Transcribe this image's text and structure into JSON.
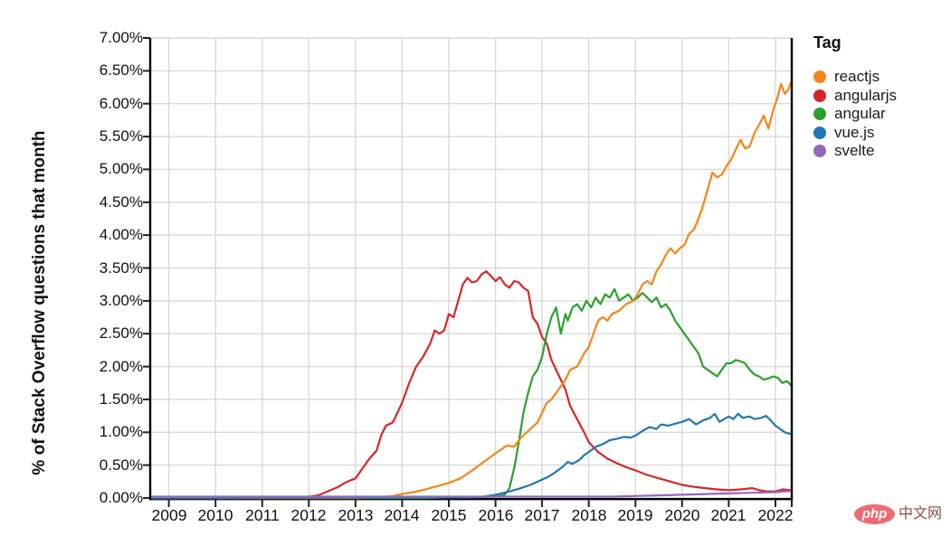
{
  "watermark": {
    "badge": "php",
    "text": "中文网",
    "badge_color": "#ee6a71",
    "text_color": "#8d4b45"
  },
  "chart_data": {
    "type": "line",
    "title": "",
    "xlabel": "",
    "ylabel": "% of Stack Overflow questions that month",
    "legend_title": "Tag",
    "legend_position": "right",
    "grid": true,
    "grid_color": "#d9d9d9",
    "axis_color": "#000000",
    "x_domain": [
      2008.6,
      2022.35
    ],
    "y_domain": [
      0,
      7
    ],
    "y_ticks": [
      {
        "value": 7.0,
        "label": "7.00%"
      },
      {
        "value": 6.5,
        "label": "6.50%"
      },
      {
        "value": 6.0,
        "label": "6.00%"
      },
      {
        "value": 5.5,
        "label": "5.50%"
      },
      {
        "value": 5.0,
        "label": "5.00%"
      },
      {
        "value": 4.5,
        "label": "4.50%"
      },
      {
        "value": 4.0,
        "label": "4.00%"
      },
      {
        "value": 3.5,
        "label": "3.50%"
      },
      {
        "value": 3.0,
        "label": "3.00%"
      },
      {
        "value": 2.5,
        "label": "2.50%"
      },
      {
        "value": 2.0,
        "label": "2.00%"
      },
      {
        "value": 1.5,
        "label": "1.50%"
      },
      {
        "value": 1.0,
        "label": "1.00%"
      },
      {
        "value": 0.5,
        "label": "0.50%"
      },
      {
        "value": 0.0,
        "label": "0.00%"
      }
    ],
    "x_ticks": [
      {
        "value": 2009,
        "label": "2009"
      },
      {
        "value": 2010,
        "label": "2010"
      },
      {
        "value": 2011,
        "label": "2011"
      },
      {
        "value": 2012,
        "label": "2012"
      },
      {
        "value": 2013,
        "label": "2013"
      },
      {
        "value": 2014,
        "label": "2014"
      },
      {
        "value": 2015,
        "label": "2015"
      },
      {
        "value": 2016,
        "label": "2016"
      },
      {
        "value": 2017,
        "label": "2017"
      },
      {
        "value": 2018,
        "label": "2018"
      },
      {
        "value": 2019,
        "label": "2019"
      },
      {
        "value": 2020,
        "label": "2020"
      },
      {
        "value": 2021,
        "label": "2021"
      },
      {
        "value": 2022,
        "label": "2022"
      }
    ],
    "draw_order": [
      "angularjs",
      "angular",
      "reactjs",
      "vue.js",
      "svelte"
    ],
    "series": [
      {
        "name": "reactjs",
        "color": "#f58518",
        "points": [
          [
            2008.6,
            0
          ],
          [
            2013,
            0
          ],
          [
            2013.4,
            0.01
          ],
          [
            2013.8,
            0.03
          ],
          [
            2014,
            0.06
          ],
          [
            2014.25,
            0.09
          ],
          [
            2014.5,
            0.13
          ],
          [
            2014.75,
            0.18
          ],
          [
            2015,
            0.23
          ],
          [
            2015.25,
            0.3
          ],
          [
            2015.5,
            0.42
          ],
          [
            2015.75,
            0.55
          ],
          [
            2016,
            0.68
          ],
          [
            2016.25,
            0.8
          ],
          [
            2016.4,
            0.78
          ],
          [
            2016.55,
            0.92
          ],
          [
            2016.75,
            1.05
          ],
          [
            2016.9,
            1.15
          ],
          [
            2017,
            1.3
          ],
          [
            2017.1,
            1.45
          ],
          [
            2017.2,
            1.5
          ],
          [
            2017.35,
            1.65
          ],
          [
            2017.5,
            1.8
          ],
          [
            2017.6,
            1.95
          ],
          [
            2017.75,
            2.0
          ],
          [
            2017.9,
            2.2
          ],
          [
            2018,
            2.3
          ],
          [
            2018.1,
            2.5
          ],
          [
            2018.2,
            2.7
          ],
          [
            2018.3,
            2.75
          ],
          [
            2018.4,
            2.7
          ],
          [
            2018.5,
            2.8
          ],
          [
            2018.65,
            2.85
          ],
          [
            2018.8,
            2.95
          ],
          [
            2018.95,
            3.0
          ],
          [
            2019.05,
            3.1
          ],
          [
            2019.15,
            3.25
          ],
          [
            2019.25,
            3.3
          ],
          [
            2019.35,
            3.25
          ],
          [
            2019.45,
            3.45
          ],
          [
            2019.55,
            3.55
          ],
          [
            2019.65,
            3.7
          ],
          [
            2019.75,
            3.8
          ],
          [
            2019.85,
            3.72
          ],
          [
            2019.95,
            3.8
          ],
          [
            2020.05,
            3.85
          ],
          [
            2020.15,
            4.02
          ],
          [
            2020.25,
            4.08
          ],
          [
            2020.35,
            4.25
          ],
          [
            2020.45,
            4.45
          ],
          [
            2020.55,
            4.7
          ],
          [
            2020.65,
            4.95
          ],
          [
            2020.75,
            4.88
          ],
          [
            2020.85,
            4.92
          ],
          [
            2020.95,
            5.05
          ],
          [
            2021.05,
            5.15
          ],
          [
            2021.15,
            5.3
          ],
          [
            2021.25,
            5.45
          ],
          [
            2021.35,
            5.32
          ],
          [
            2021.45,
            5.35
          ],
          [
            2021.55,
            5.55
          ],
          [
            2021.65,
            5.68
          ],
          [
            2021.75,
            5.82
          ],
          [
            2021.85,
            5.62
          ],
          [
            2021.95,
            5.9
          ],
          [
            2022.05,
            6.1
          ],
          [
            2022.12,
            6.3
          ],
          [
            2022.2,
            6.15
          ],
          [
            2022.28,
            6.22
          ],
          [
            2022.35,
            6.35
          ]
        ]
      },
      {
        "name": "angularjs",
        "color": "#d62728",
        "points": [
          [
            2008.6,
            0
          ],
          [
            2011.5,
            0
          ],
          [
            2011.8,
            0.01
          ],
          [
            2012,
            0.02
          ],
          [
            2012.2,
            0.04
          ],
          [
            2012.4,
            0.1
          ],
          [
            2012.6,
            0.16
          ],
          [
            2012.8,
            0.24
          ],
          [
            2013,
            0.3
          ],
          [
            2013.15,
            0.45
          ],
          [
            2013.3,
            0.6
          ],
          [
            2013.45,
            0.72
          ],
          [
            2013.55,
            0.95
          ],
          [
            2013.65,
            1.1
          ],
          [
            2013.8,
            1.15
          ],
          [
            2013.9,
            1.3
          ],
          [
            2014,
            1.45
          ],
          [
            2014.15,
            1.75
          ],
          [
            2014.3,
            2.0
          ],
          [
            2014.45,
            2.15
          ],
          [
            2014.6,
            2.35
          ],
          [
            2014.7,
            2.55
          ],
          [
            2014.8,
            2.5
          ],
          [
            2014.9,
            2.55
          ],
          [
            2015,
            2.8
          ],
          [
            2015.1,
            2.75
          ],
          [
            2015.2,
            3.0
          ],
          [
            2015.3,
            3.25
          ],
          [
            2015.4,
            3.35
          ],
          [
            2015.5,
            3.28
          ],
          [
            2015.6,
            3.3
          ],
          [
            2015.7,
            3.4
          ],
          [
            2015.8,
            3.45
          ],
          [
            2015.9,
            3.38
          ],
          [
            2016,
            3.3
          ],
          [
            2016.1,
            3.36
          ],
          [
            2016.2,
            3.25
          ],
          [
            2016.3,
            3.2
          ],
          [
            2016.4,
            3.3
          ],
          [
            2016.5,
            3.28
          ],
          [
            2016.6,
            3.2
          ],
          [
            2016.7,
            3.15
          ],
          [
            2016.8,
            2.75
          ],
          [
            2016.9,
            2.65
          ],
          [
            2017,
            2.45
          ],
          [
            2017.1,
            2.35
          ],
          [
            2017.2,
            2.1
          ],
          [
            2017.3,
            1.95
          ],
          [
            2017.4,
            1.8
          ],
          [
            2017.5,
            1.65
          ],
          [
            2017.6,
            1.4
          ],
          [
            2017.75,
            1.2
          ],
          [
            2017.9,
            1.0
          ],
          [
            2018,
            0.85
          ],
          [
            2018.2,
            0.7
          ],
          [
            2018.4,
            0.6
          ],
          [
            2018.6,
            0.53
          ],
          [
            2018.8,
            0.47
          ],
          [
            2019,
            0.42
          ],
          [
            2019.25,
            0.35
          ],
          [
            2019.5,
            0.3
          ],
          [
            2019.75,
            0.25
          ],
          [
            2020,
            0.2
          ],
          [
            2020.25,
            0.17
          ],
          [
            2020.5,
            0.15
          ],
          [
            2020.75,
            0.13
          ],
          [
            2021,
            0.12
          ],
          [
            2021.25,
            0.13
          ],
          [
            2021.5,
            0.15
          ],
          [
            2021.65,
            0.12
          ],
          [
            2021.8,
            0.1
          ],
          [
            2022,
            0.1
          ],
          [
            2022.15,
            0.13
          ],
          [
            2022.35,
            0.12
          ]
        ]
      },
      {
        "name": "angular",
        "color": "#2ca02c",
        "points": [
          [
            2008.6,
            0
          ],
          [
            2014.5,
            0
          ],
          [
            2015,
            0.01
          ],
          [
            2015.5,
            0.01
          ],
          [
            2016,
            0.02
          ],
          [
            2016.2,
            0.05
          ],
          [
            2016.3,
            0.15
          ],
          [
            2016.4,
            0.45
          ],
          [
            2016.5,
            0.85
          ],
          [
            2016.6,
            1.3
          ],
          [
            2016.7,
            1.6
          ],
          [
            2016.8,
            1.85
          ],
          [
            2016.9,
            1.95
          ],
          [
            2017,
            2.15
          ],
          [
            2017.1,
            2.5
          ],
          [
            2017.2,
            2.75
          ],
          [
            2017.3,
            2.9
          ],
          [
            2017.4,
            2.5
          ],
          [
            2017.5,
            2.8
          ],
          [
            2017.55,
            2.7
          ],
          [
            2017.65,
            2.9
          ],
          [
            2017.75,
            2.95
          ],
          [
            2017.85,
            2.85
          ],
          [
            2017.95,
            3.0
          ],
          [
            2018.05,
            2.9
          ],
          [
            2018.15,
            3.05
          ],
          [
            2018.25,
            2.95
          ],
          [
            2018.35,
            3.1
          ],
          [
            2018.45,
            3.05
          ],
          [
            2018.55,
            3.18
          ],
          [
            2018.65,
            3.0
          ],
          [
            2018.75,
            3.05
          ],
          [
            2018.85,
            3.1
          ],
          [
            2018.95,
            3.0
          ],
          [
            2019.05,
            3.05
          ],
          [
            2019.15,
            3.12
          ],
          [
            2019.25,
            3.05
          ],
          [
            2019.35,
            2.98
          ],
          [
            2019.45,
            3.05
          ],
          [
            2019.55,
            2.9
          ],
          [
            2019.65,
            2.95
          ],
          [
            2019.75,
            2.85
          ],
          [
            2019.85,
            2.7
          ],
          [
            2019.95,
            2.6
          ],
          [
            2020.05,
            2.5
          ],
          [
            2020.15,
            2.4
          ],
          [
            2020.25,
            2.3
          ],
          [
            2020.35,
            2.2
          ],
          [
            2020.45,
            2.0
          ],
          [
            2020.55,
            1.95
          ],
          [
            2020.65,
            1.9
          ],
          [
            2020.75,
            1.85
          ],
          [
            2020.85,
            1.95
          ],
          [
            2020.95,
            2.05
          ],
          [
            2021.05,
            2.05
          ],
          [
            2021.15,
            2.1
          ],
          [
            2021.25,
            2.08
          ],
          [
            2021.35,
            2.05
          ],
          [
            2021.45,
            1.95
          ],
          [
            2021.55,
            1.88
          ],
          [
            2021.65,
            1.85
          ],
          [
            2021.75,
            1.8
          ],
          [
            2021.85,
            1.82
          ],
          [
            2021.95,
            1.85
          ],
          [
            2022.05,
            1.83
          ],
          [
            2022.15,
            1.75
          ],
          [
            2022.25,
            1.78
          ],
          [
            2022.35,
            1.7
          ]
        ]
      },
      {
        "name": "vue.js",
        "color": "#1f77b4",
        "points": [
          [
            2008.6,
            0
          ],
          [
            2015.5,
            0.01
          ],
          [
            2015.75,
            0.02
          ],
          [
            2016,
            0.05
          ],
          [
            2016.25,
            0.09
          ],
          [
            2016.5,
            0.14
          ],
          [
            2016.75,
            0.2
          ],
          [
            2017,
            0.28
          ],
          [
            2017.15,
            0.33
          ],
          [
            2017.3,
            0.4
          ],
          [
            2017.45,
            0.48
          ],
          [
            2017.55,
            0.55
          ],
          [
            2017.65,
            0.52
          ],
          [
            2017.8,
            0.58
          ],
          [
            2017.9,
            0.65
          ],
          [
            2018,
            0.7
          ],
          [
            2018.15,
            0.78
          ],
          [
            2018.3,
            0.82
          ],
          [
            2018.45,
            0.88
          ],
          [
            2018.6,
            0.9
          ],
          [
            2018.75,
            0.93
          ],
          [
            2018.9,
            0.92
          ],
          [
            2019,
            0.95
          ],
          [
            2019.15,
            1.02
          ],
          [
            2019.3,
            1.08
          ],
          [
            2019.45,
            1.05
          ],
          [
            2019.55,
            1.12
          ],
          [
            2019.7,
            1.1
          ],
          [
            2019.85,
            1.13
          ],
          [
            2020,
            1.16
          ],
          [
            2020.15,
            1.2
          ],
          [
            2020.3,
            1.12
          ],
          [
            2020.45,
            1.18
          ],
          [
            2020.6,
            1.22
          ],
          [
            2020.7,
            1.28
          ],
          [
            2020.8,
            1.16
          ],
          [
            2020.9,
            1.2
          ],
          [
            2021,
            1.24
          ],
          [
            2021.1,
            1.2
          ],
          [
            2021.2,
            1.28
          ],
          [
            2021.3,
            1.22
          ],
          [
            2021.45,
            1.24
          ],
          [
            2021.55,
            1.2
          ],
          [
            2021.7,
            1.22
          ],
          [
            2021.8,
            1.25
          ],
          [
            2021.9,
            1.18
          ],
          [
            2022,
            1.1
          ],
          [
            2022.1,
            1.05
          ],
          [
            2022.2,
            1.0
          ],
          [
            2022.35,
            0.97
          ]
        ]
      },
      {
        "name": "svelte",
        "color": "#9467bd",
        "points": [
          [
            2008.6,
            0.02
          ],
          [
            2017.5,
            0.02
          ],
          [
            2018,
            0.02
          ],
          [
            2018.5,
            0.02
          ],
          [
            2019,
            0.03
          ],
          [
            2019.5,
            0.04
          ],
          [
            2020,
            0.05
          ],
          [
            2020.5,
            0.06
          ],
          [
            2021,
            0.07
          ],
          [
            2021.5,
            0.08
          ],
          [
            2022,
            0.09
          ],
          [
            2022.35,
            0.11
          ]
        ]
      }
    ]
  }
}
